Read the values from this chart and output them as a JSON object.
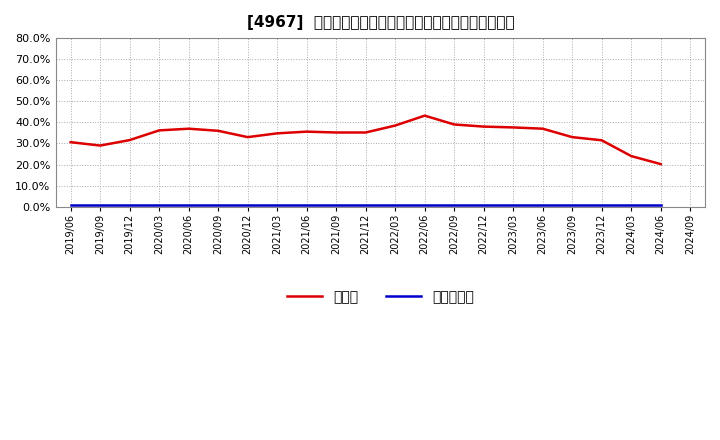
{
  "title": "[4967]  現预金、有利子負債の総資産に対する比率の推移",
  "x_labels": [
    "2019/06",
    "2019/09",
    "2019/12",
    "2020/03",
    "2020/06",
    "2020/09",
    "2020/12",
    "2021/03",
    "2021/06",
    "2021/09",
    "2021/12",
    "2022/03",
    "2022/06",
    "2022/09",
    "2022/12",
    "2023/03",
    "2023/06",
    "2023/09",
    "2023/12",
    "2024/03",
    "2024/06",
    "2024/09"
  ],
  "cash_values": [
    0.306,
    0.29,
    0.316,
    0.362,
    0.37,
    0.36,
    0.33,
    0.348,
    0.356,
    0.352,
    0.352,
    0.385,
    0.432,
    0.39,
    0.38,
    0.376,
    0.37,
    0.33,
    0.315,
    0.24,
    0.202,
    null
  ],
  "debt_values": [
    0.008,
    0.008,
    0.008,
    0.008,
    0.008,
    0.008,
    0.008,
    0.008,
    0.008,
    0.008,
    0.008,
    0.008,
    0.008,
    0.008,
    0.008,
    0.008,
    0.008,
    0.008,
    0.008,
    0.008,
    0.008,
    null
  ],
  "cash_color": "#dd0000",
  "debt_color": "#0000cc",
  "ylim": [
    0.0,
    0.8
  ],
  "yticks": [
    0.0,
    0.1,
    0.2,
    0.3,
    0.4,
    0.5,
    0.6,
    0.7,
    0.8
  ],
  "legend_cash": "現预金",
  "legend_debt": "有利子負債",
  "bg_color": "#ffffff",
  "plot_bg_color": "#ffffff",
  "grid_color": "#aaaaaa",
  "title_fontsize": 11,
  "line_width": 1.8
}
